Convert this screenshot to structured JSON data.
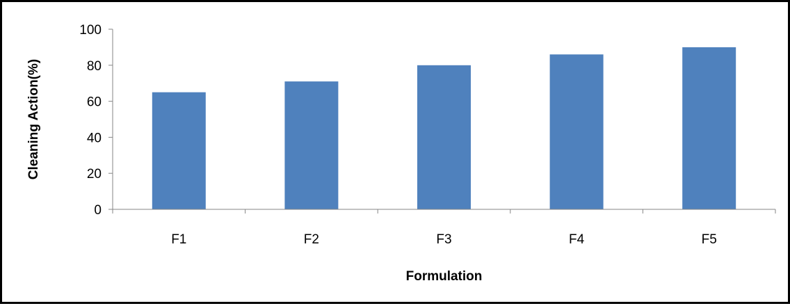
{
  "chart_data": {
    "type": "bar",
    "title": "",
    "xlabel": "Formulation",
    "ylabel": "Cleaning Action(%)",
    "categories": [
      "F1",
      "F2",
      "F3",
      "F4",
      "F5"
    ],
    "values": [
      65,
      71,
      80,
      86,
      90
    ],
    "ylim": [
      0,
      100
    ],
    "yticks": [
      0,
      20,
      40,
      60,
      80,
      100
    ],
    "grid": false,
    "legend": "none",
    "bar_color": "#4F81BD",
    "axis_color": "#868686"
  }
}
